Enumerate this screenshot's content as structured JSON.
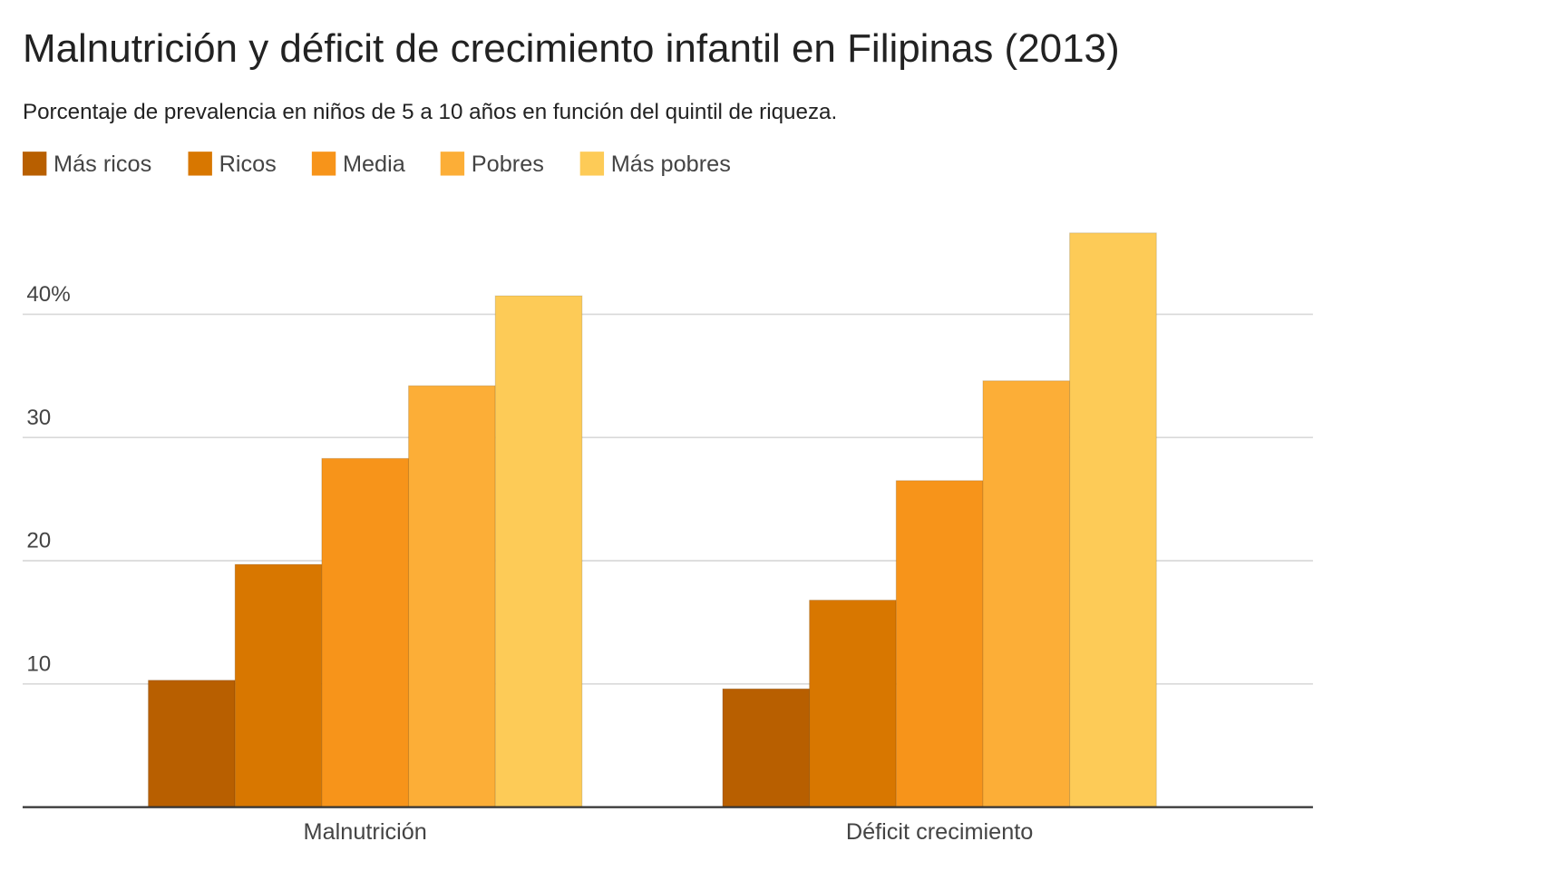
{
  "chart_data": {
    "type": "bar",
    "title": "Malnutrición y déficit de crecimiento infantil en Filipinas (2013)",
    "subtitle": "Porcentaje de prevalencia en niños de 5 a 10 años en función del quintil de riqueza.",
    "categories": [
      "Malnutrición",
      "Déficit crecimiento"
    ],
    "series": [
      {
        "name": "Más ricos",
        "color": "#b85f00",
        "values": [
          10.3,
          9.6
        ]
      },
      {
        "name": "Ricos",
        "color": "#d87700",
        "values": [
          19.7,
          16.8
        ]
      },
      {
        "name": "Media",
        "color": "#f7941a",
        "values": [
          28.3,
          26.5
        ]
      },
      {
        "name": "Pobres",
        "color": "#fcae37",
        "values": [
          34.2,
          34.6
        ]
      },
      {
        "name": "Más pobres",
        "color": "#fdcb57",
        "values": [
          41.5,
          46.6
        ]
      }
    ],
    "yticks": [
      {
        "value": 10,
        "label": "10"
      },
      {
        "value": 20,
        "label": "20"
      },
      {
        "value": 30,
        "label": "30"
      },
      {
        "value": 40,
        "label": "40%"
      }
    ],
    "ylim": [
      0,
      47
    ],
    "grid": true,
    "legend_position": "top-left",
    "xlabel": "",
    "ylabel": ""
  }
}
